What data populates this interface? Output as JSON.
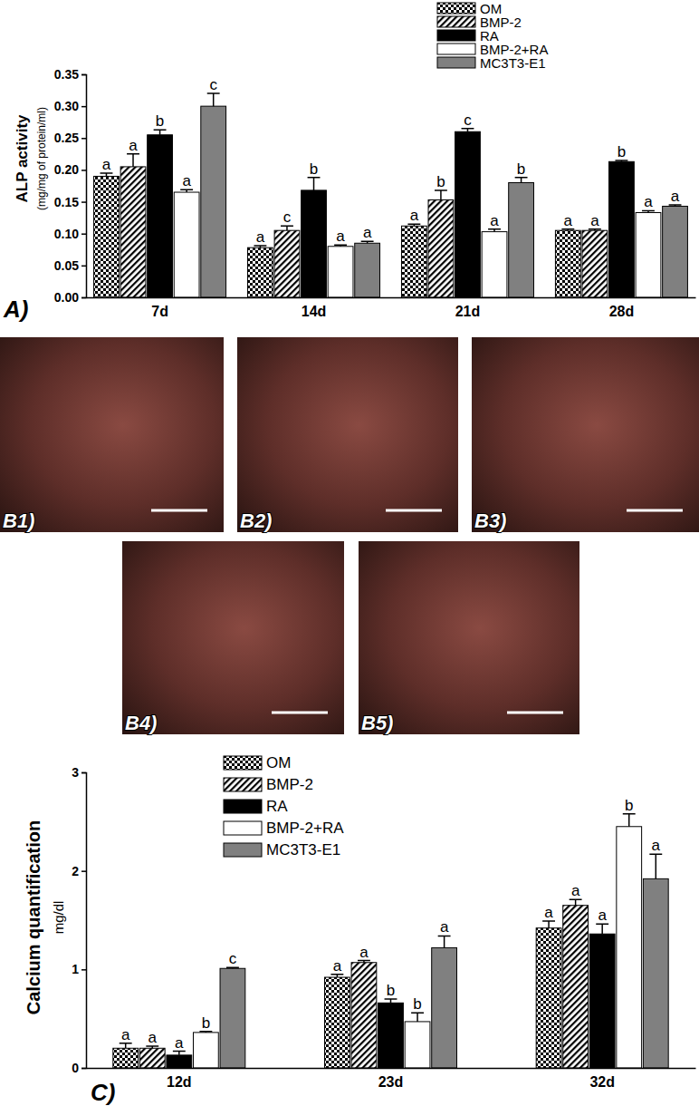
{
  "chart_data": [
    {
      "type": "bar",
      "panel_label": "A)",
      "y_label": [
        "ALP activity",
        "(mg/mg of protein/ml)"
      ],
      "categories": [
        "7d",
        "14d",
        "21d",
        "28d"
      ],
      "ylim": [
        0,
        0.35
      ],
      "yticks": [
        {
          "value": 0,
          "label": "0.00"
        },
        0.05,
        {
          "value": 0.1,
          "label": "0.10"
        },
        0.15,
        {
          "value": 0.2,
          "label": "0.20"
        },
        0.25,
        {
          "value": 0.3,
          "label": "0.30"
        },
        0.35
      ],
      "legend": "top-right",
      "grid": false,
      "series": [
        {
          "name": "OM",
          "color": "#000000",
          "values": [
            0.19,
            0.078,
            0.112,
            0.105
          ],
          "errors": [
            0.005,
            0.003,
            0.003,
            0.002
          ],
          "letters": [
            "a",
            "a",
            "a",
            "a"
          ]
        },
        {
          "name": "BMP-2",
          "color": "#000000",
          "values": [
            0.205,
            0.105,
            0.153,
            0.105
          ],
          "errors": [
            0.02,
            0.007,
            0.015,
            0.002
          ],
          "letters": [
            "a",
            "c",
            "b",
            "a"
          ]
        },
        {
          "name": "RA",
          "color": "#000000",
          "values": [
            0.255,
            0.168,
            0.26,
            0.213
          ],
          "errors": [
            0.008,
            0.02,
            0.005,
            0.002
          ],
          "letters": [
            "b",
            "b",
            "c",
            "b"
          ]
        },
        {
          "name": "BMP-2+RA",
          "color": "#ffffff",
          "values": [
            0.165,
            0.08,
            0.103,
            0.133
          ],
          "errors": [
            0.004,
            0.002,
            0.004,
            0.003
          ],
          "letters": [
            "a",
            "a",
            "a",
            "a"
          ]
        },
        {
          "name": "MC3T3-E1",
          "color": "#808080",
          "values": [
            0.3,
            0.085,
            0.18,
            0.143
          ],
          "errors": [
            0.02,
            0.003,
            0.008,
            0.002
          ],
          "letters": [
            "c",
            "a",
            "b",
            "a"
          ]
        }
      ]
    },
    {
      "type": "bar",
      "panel_label": "C)",
      "y_label": [
        "Calcium quantification",
        "mg/dl"
      ],
      "categories": [
        "12d",
        "23d",
        "32d"
      ],
      "ylim": [
        0,
        3
      ],
      "yticks": [
        0,
        1,
        2,
        3
      ],
      "legend": "top-left",
      "grid": false,
      "series": [
        {
          "name": "OM",
          "color": "#000000",
          "values": [
            0.2,
            0.92,
            1.42
          ],
          "errors": [
            0.05,
            0.03,
            0.07
          ],
          "letters": [
            "a",
            "a",
            "a"
          ]
        },
        {
          "name": "BMP-2",
          "color": "#000000",
          "values": [
            0.2,
            1.07,
            1.65
          ],
          "errors": [
            0.02,
            0.02,
            0.06
          ],
          "letters": [
            "a",
            "a",
            "a"
          ]
        },
        {
          "name": "RA",
          "color": "#000000",
          "values": [
            0.13,
            0.66,
            1.36
          ],
          "errors": [
            0.04,
            0.04,
            0.1
          ],
          "letters": [
            "a",
            "b",
            "a"
          ]
        },
        {
          "name": "BMP-2+RA",
          "color": "#ffffff",
          "values": [
            0.36,
            0.47,
            2.45
          ],
          "errors": [
            0.01,
            0.09,
            0.13
          ],
          "letters": [
            "b",
            "b",
            "b"
          ]
        },
        {
          "name": "MC3T3-E1",
          "color": "#808080",
          "values": [
            1.01,
            1.22,
            1.92
          ],
          "errors": [
            0.01,
            0.12,
            0.25
          ],
          "letters": [
            "c",
            "a",
            "a"
          ]
        }
      ]
    }
  ],
  "images": [
    {
      "label": "B1)"
    },
    {
      "label": "B2)"
    },
    {
      "label": "B3)"
    },
    {
      "label": "B4)"
    },
    {
      "label": "B5)"
    }
  ]
}
